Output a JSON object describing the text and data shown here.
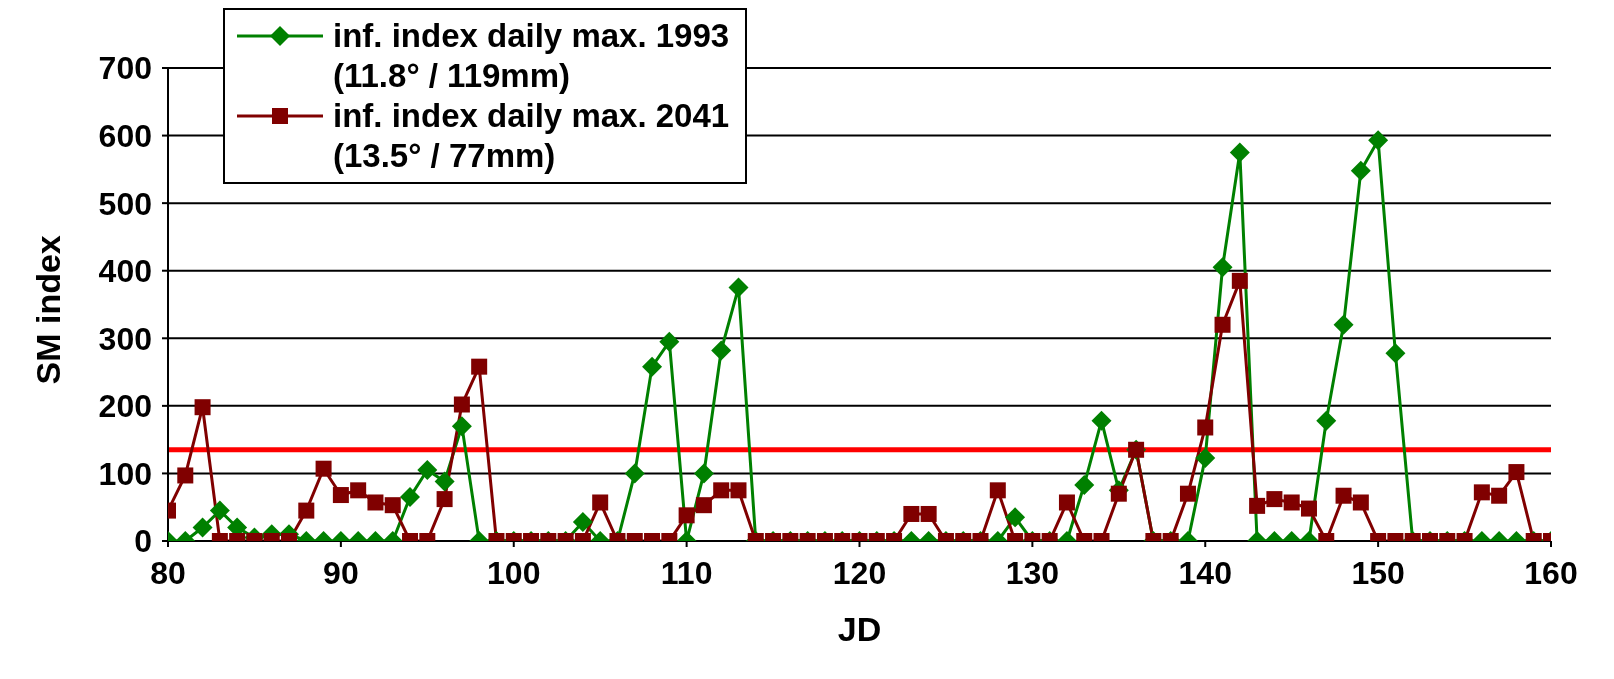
{
  "chart_data": {
    "type": "line",
    "xlabel": "JD",
    "ylabel": "SM  index",
    "x": [
      80,
      81,
      82,
      83,
      84,
      85,
      86,
      87,
      88,
      89,
      90,
      91,
      92,
      93,
      94,
      95,
      96,
      97,
      98,
      99,
      100,
      101,
      102,
      103,
      104,
      105,
      106,
      107,
      108,
      109,
      110,
      111,
      112,
      113,
      114,
      115,
      116,
      117,
      118,
      119,
      120,
      121,
      122,
      123,
      124,
      125,
      126,
      127,
      128,
      129,
      130,
      131,
      132,
      133,
      134,
      135,
      136,
      137,
      138,
      139,
      140,
      141,
      142,
      143,
      144,
      145,
      146,
      147,
      148,
      149,
      150,
      151,
      152,
      153,
      154,
      155,
      156,
      157,
      158,
      159,
      160
    ],
    "series": [
      {
        "name": "inf. index daily max. 1993 (11.8° / 119mm)",
        "color": "#008000",
        "marker": "diamond",
        "values": [
          0,
          0,
          20,
          45,
          20,
          5,
          10,
          10,
          0,
          0,
          0,
          0,
          0,
          0,
          65,
          105,
          88,
          170,
          0,
          0,
          0,
          0,
          0,
          0,
          28,
          0,
          0,
          100,
          258,
          295,
          0,
          100,
          282,
          375,
          0,
          0,
          0,
          0,
          0,
          0,
          0,
          0,
          0,
          0,
          0,
          0,
          0,
          0,
          0,
          35,
          0,
          0,
          0,
          83,
          178,
          75,
          135,
          0,
          0,
          0,
          123,
          405,
          575,
          0,
          0,
          0,
          0,
          178,
          320,
          548,
          593,
          278,
          0,
          0,
          0,
          0,
          0,
          0,
          0,
          0,
          0
        ]
      },
      {
        "name": "inf. index daily max. 2041 (13.5° / 77mm)",
        "color": "#800000",
        "marker": "square",
        "values": [
          45,
          97,
          198,
          0,
          0,
          0,
          0,
          0,
          45,
          107,
          68,
          75,
          57,
          53,
          0,
          0,
          62,
          202,
          258,
          0,
          0,
          0,
          0,
          0,
          0,
          57,
          0,
          0,
          0,
          0,
          38,
          53,
          75,
          75,
          0,
          0,
          0,
          0,
          0,
          0,
          0,
          0,
          0,
          40,
          40,
          0,
          0,
          0,
          75,
          0,
          0,
          0,
          57,
          0,
          0,
          70,
          135,
          0,
          0,
          70,
          168,
          320,
          385,
          52,
          62,
          57,
          48,
          0,
          67,
          57,
          0,
          0,
          0,
          0,
          0,
          0,
          72,
          67,
          102,
          0,
          0
        ]
      }
    ],
    "xlim": [
      80,
      160
    ],
    "xticks": [
      80,
      90,
      100,
      110,
      120,
      130,
      140,
      150,
      160
    ],
    "ylim": [
      0,
      700
    ],
    "yticks": [
      0,
      100,
      200,
      300,
      400,
      500,
      600,
      700
    ],
    "grid": "y",
    "legend": "top left",
    "line_style": "solid",
    "ref_lines": [
      {
        "axis": "y",
        "value": 135,
        "color": "#ff0000"
      }
    ]
  }
}
